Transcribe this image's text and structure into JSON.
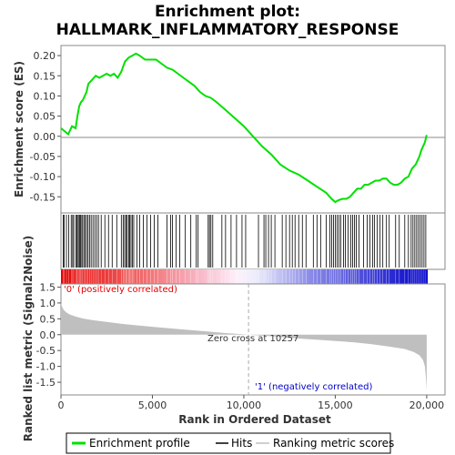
{
  "chart_data": [
    {
      "type": "line",
      "title": "Enrichment plot:",
      "subtitle": "HALLMARK_INFLAMMATORY_RESPONSE",
      "ylabel": "Enrichment score (ES)",
      "ylim": [
        -0.19,
        0.225
      ],
      "yticks": [
        "0.20",
        "0.15",
        "0.10",
        "0.05",
        "0.00",
        "-0.05",
        "-0.10",
        "-0.15"
      ],
      "ytick_values": [
        0.2,
        0.15,
        0.1,
        0.05,
        0.0,
        -0.05,
        -0.1,
        -0.15
      ],
      "xlim": [
        0,
        21000
      ],
      "grid": false,
      "series": [
        {
          "name": "Enrichment profile",
          "color": "#00e000",
          "x": [
            0,
            400,
            600,
            800,
            900,
            1000,
            1100,
            1200,
            1400,
            1500,
            1700,
            1900,
            2100,
            2300,
            2500,
            2700,
            2900,
            3100,
            3300,
            3500,
            3700,
            3900,
            4100,
            4300,
            4600,
            4900,
            5200,
            5500,
            5800,
            6100,
            6400,
            6700,
            7000,
            7300,
            7600,
            7900,
            8200,
            8500,
            9000,
            9500,
            10000,
            10500,
            11000,
            11500,
            12000,
            12500,
            13000,
            13500,
            14000,
            14500,
            14800,
            15000,
            15200,
            15400,
            15600,
            15800,
            16000,
            16200,
            16400,
            16600,
            16800,
            17000,
            17200,
            17400,
            17600,
            17800,
            18000,
            18200,
            18400,
            18600,
            18800,
            19000,
            19200,
            19400,
            19600,
            19700,
            19800,
            19900,
            20000
          ],
          "values": [
            0.02,
            0.005,
            0.025,
            0.02,
            0.05,
            0.075,
            0.085,
            0.09,
            0.11,
            0.13,
            0.14,
            0.15,
            0.145,
            0.15,
            0.155,
            0.15,
            0.155,
            0.145,
            0.16,
            0.185,
            0.195,
            0.2,
            0.205,
            0.2,
            0.19,
            0.19,
            0.19,
            0.18,
            0.17,
            0.165,
            0.155,
            0.145,
            0.135,
            0.125,
            0.11,
            0.1,
            0.095,
            0.085,
            0.065,
            0.045,
            0.025,
            0.0,
            -0.025,
            -0.045,
            -0.07,
            -0.085,
            -0.095,
            -0.11,
            -0.125,
            -0.14,
            -0.155,
            -0.163,
            -0.158,
            -0.155,
            -0.155,
            -0.15,
            -0.14,
            -0.13,
            -0.13,
            -0.12,
            -0.12,
            -0.115,
            -0.11,
            -0.11,
            -0.105,
            -0.105,
            -0.115,
            -0.12,
            -0.12,
            -0.115,
            -0.105,
            -0.1,
            -0.08,
            -0.07,
            -0.05,
            -0.035,
            -0.025,
            -0.015,
            0.003
          ]
        }
      ]
    },
    {
      "type": "line",
      "xlabel": "Rank in Ordered Dataset",
      "ylabel": "Ranked list metric (Signal2Noise)",
      "xlim": [
        0,
        21000
      ],
      "ylim": [
        -1.9,
        1.6
      ],
      "xticks": [
        "0",
        "5,000",
        "10,000",
        "15,000",
        "20,000"
      ],
      "xtick_values": [
        0,
        5000,
        10000,
        15000,
        20000
      ],
      "yticks": [
        "1.5",
        "1.0",
        "0.5",
        "0.0",
        "-0.5",
        "-1.0",
        "-1.5"
      ],
      "ytick_values": [
        1.5,
        1.0,
        0.5,
        0.0,
        -0.5,
        -1.0,
        -1.5
      ],
      "zero_cross": 10257,
      "annotations": {
        "positive": "'0' (positively correlated)",
        "zero_cross": "Zero cross at 10257",
        "negative": "'1' (negatively correlated)"
      },
      "series": [
        {
          "name": "Ranking metric scores",
          "color": "#bfbfbf",
          "x": [
            0,
            50,
            150,
            300,
            500,
            800,
            1200,
            1700,
            2500,
            3500,
            5000,
            6500,
            8000,
            9000,
            10257,
            11500,
            13000,
            14500,
            16000,
            17000,
            18000,
            18800,
            19300,
            19600,
            19800,
            19900,
            19950,
            20000
          ],
          "values": [
            1.0,
            0.9,
            0.78,
            0.7,
            0.63,
            0.57,
            0.51,
            0.46,
            0.4,
            0.33,
            0.25,
            0.17,
            0.1,
            0.05,
            0.0,
            -0.05,
            -0.12,
            -0.18,
            -0.24,
            -0.3,
            -0.38,
            -0.45,
            -0.55,
            -0.65,
            -0.8,
            -1.0,
            -1.3,
            -1.75
          ]
        }
      ]
    }
  ],
  "hits": [
    120,
    180,
    300,
    420,
    560,
    640,
    700,
    820,
    880,
    940,
    1000,
    1050,
    1100,
    1180,
    1250,
    1320,
    1400,
    1480,
    1560,
    1650,
    1750,
    1850,
    1950,
    2050,
    2200,
    2400,
    2600,
    2800,
    3050,
    3300,
    3400,
    3480,
    3560,
    3620,
    3700,
    3760,
    3830,
    3900,
    3980,
    4150,
    4300,
    4500,
    4700,
    4900,
    5100,
    5300,
    5800,
    6000,
    6100,
    6300,
    6500,
    6800,
    7100,
    7400,
    7500,
    8050,
    8120,
    8200,
    8300,
    8800,
    9000,
    9300,
    9600,
    9900,
    10100,
    10800,
    11100,
    11200,
    11350,
    11500,
    11700,
    12100,
    12300,
    12500,
    12650,
    12800,
    13000,
    13200,
    13400,
    13800,
    14000,
    14200,
    14500,
    14700,
    14800,
    14900,
    15000,
    15100,
    15200,
    15300,
    15450,
    15550,
    15700,
    15850,
    15950,
    16050,
    16150,
    16300,
    16550,
    16750,
    16900,
    17050,
    17150,
    17300,
    17450,
    17600,
    17800,
    17950,
    18300,
    18500,
    18800,
    19000,
    19150,
    19250,
    19350,
    19450,
    19550,
    19650,
    19750,
    19850,
    19950
  ],
  "legend": [
    {
      "label": "Enrichment profile",
      "color": "#00e000",
      "style": "solid"
    },
    {
      "label": "Hits",
      "color": "#000000",
      "style": "solid"
    },
    {
      "label": "Ranking metric scores",
      "color": "#bfbfbf",
      "style": "solid"
    }
  ],
  "colors": {
    "positive": "#e60000",
    "negative": "#0000c8",
    "neutral": "#ffffff",
    "zero_line": "#808080"
  }
}
